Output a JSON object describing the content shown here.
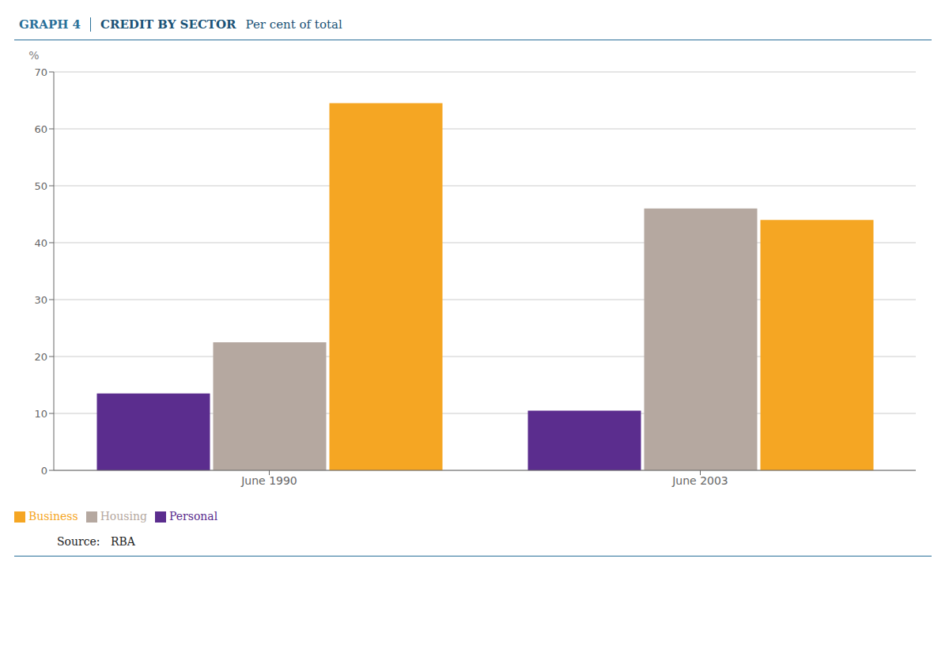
{
  "chart_data": {
    "type": "bar",
    "title": "CREDIT BY SECTOR",
    "subtitle": "Per cent of total",
    "annotations": [
      "GRAPH 4",
      "Source:   RBA"
    ],
    "categories": [
      "June 1990",
      "June 2003"
    ],
    "series": [
      {
        "name": "Personal",
        "color": "#5b2d8e",
        "values": [
          13.5,
          10.5
        ]
      },
      {
        "name": "Housing",
        "color": "#b5a8a0",
        "values": [
          22.5,
          46.0
        ]
      },
      {
        "name": "Business",
        "color": "#f5a623",
        "values": [
          64.5,
          44.0
        ]
      }
    ],
    "ylabel": "%",
    "ylim": [
      0,
      70
    ],
    "yticks": [
      0,
      10,
      20,
      30,
      40,
      50,
      60,
      70
    ],
    "grid": true,
    "legend": "bottom-left"
  }
}
